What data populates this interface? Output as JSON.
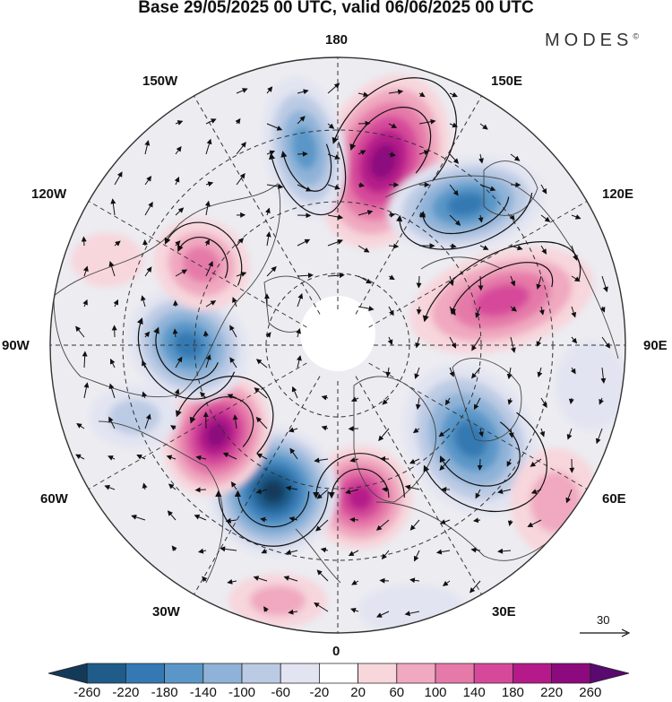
{
  "title": "Base 29/05/2025 00 UTC, valid 06/06/2025 00 UTC",
  "brand": "MODES",
  "brand_mark": "©",
  "longitude_labels": {
    "top": "180",
    "bottom": "0",
    "left": "90W",
    "right": "90E",
    "w150": "150W",
    "w120": "120W",
    "w60": "60W",
    "w30": "30W",
    "e150": "150E",
    "e120": "120E",
    "e60": "60E",
    "e30": "30E"
  },
  "reference_vector_label": "30",
  "colorbar": {
    "labels": [
      "-260",
      "-220",
      "-180",
      "-140",
      "-100",
      "-60",
      "-20",
      "20",
      "60",
      "100",
      "140",
      "180",
      "220",
      "260"
    ],
    "colors": [
      "#143a5a",
      "#1f5c8a",
      "#3479b3",
      "#5a97c8",
      "#8fb3d8",
      "#bccbe4",
      "#e2e4f1",
      "#ffffff",
      "#f7d6dc",
      "#f0a9c0",
      "#e57aa9",
      "#d6489a",
      "#b51a8a",
      "#8c0a7e",
      "#5a0a6e"
    ]
  },
  "colors": {
    "land_outline": "#444444",
    "grid_line": "#333333",
    "background_field": "#ececf1"
  }
}
